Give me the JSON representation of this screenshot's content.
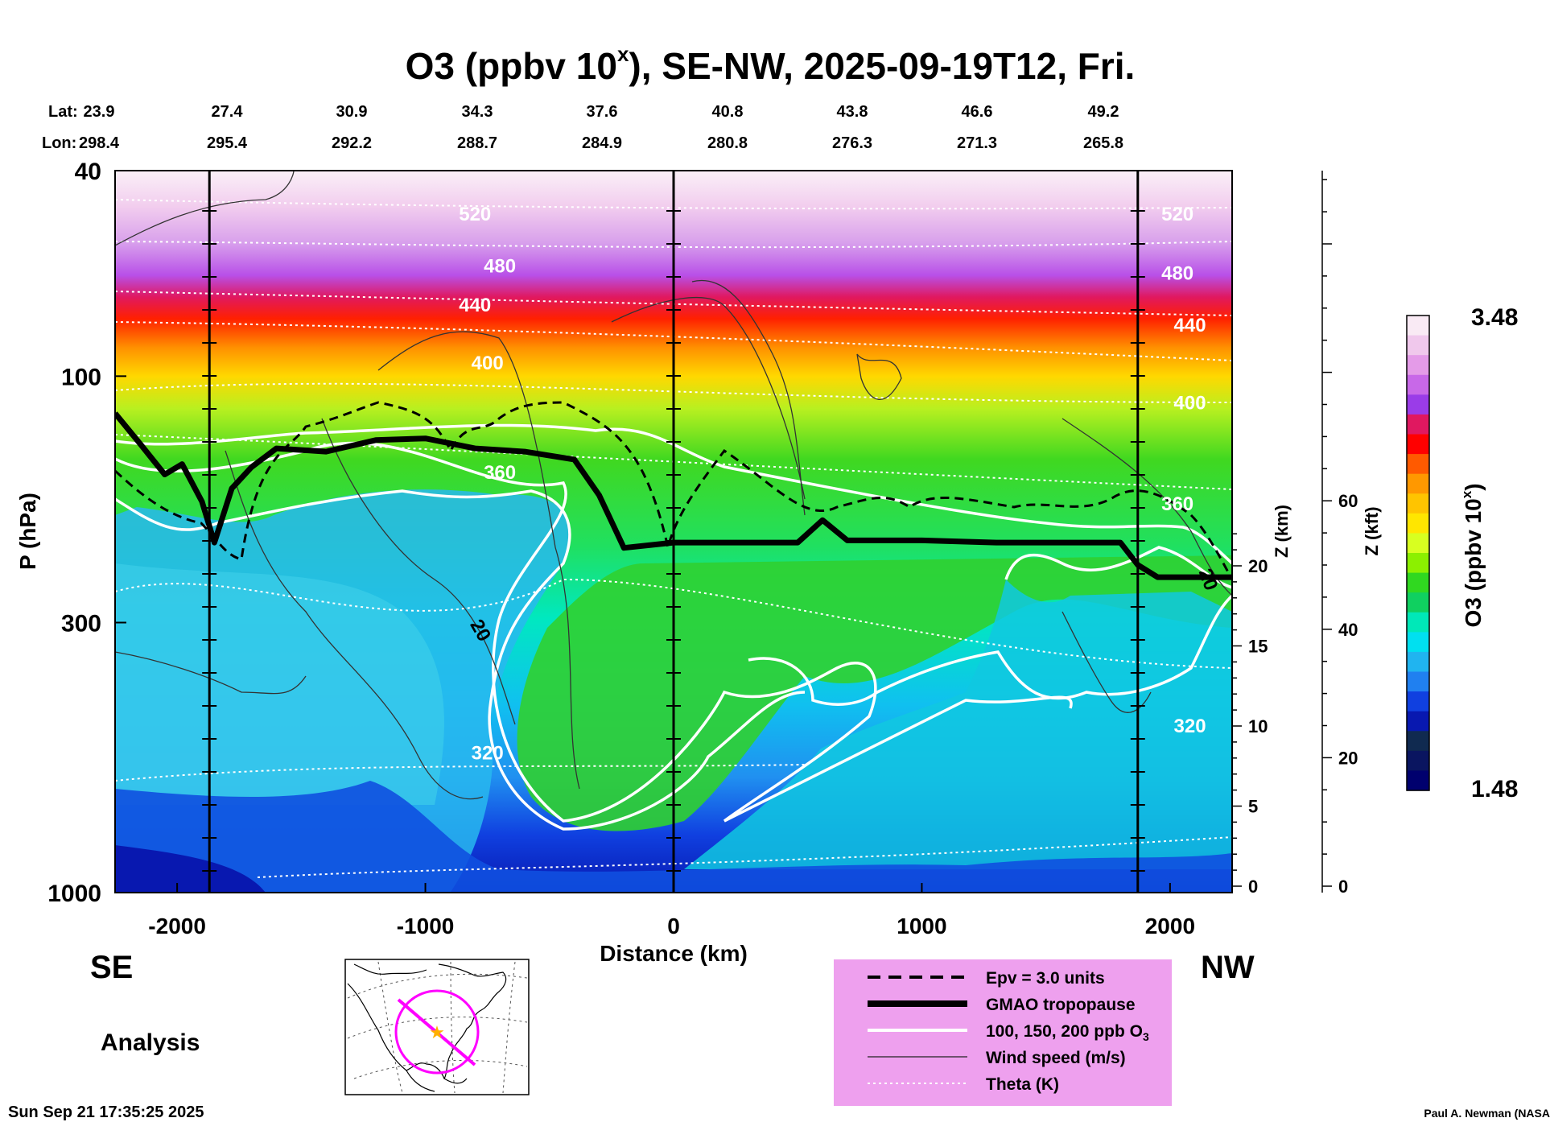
{
  "chart_data": {
    "type": "heatmap",
    "title": "O3 (ppbv 10",
    "title_superscript": "x",
    "title_rest": "), SE-NW, 2025-09-19T12, Fri.",
    "lat_label": "Lat:",
    "lon_label": "Lon:",
    "lat_values": [
      "23.9",
      "27.4",
      "30.9",
      "34.3",
      "37.6",
      "40.8",
      "43.8",
      "46.6",
      "49.2"
    ],
    "lon_values": [
      "298.4",
      "295.4",
      "292.2",
      "288.7",
      "284.9",
      "280.8",
      "276.3",
      "271.3",
      "265.8"
    ],
    "xlabel": "Distance (km)",
    "ylabel": "P (hPa)",
    "xlim": [
      -2250,
      2250
    ],
    "ylim": [
      1000,
      40
    ],
    "y_scale": "log",
    "x_ticks": [
      "-2000",
      "-1000",
      "0",
      "1000",
      "2000"
    ],
    "x_tick_values": [
      -2000,
      -1000,
      0,
      1000,
      2000
    ],
    "y_ticks": [
      "40",
      "100",
      "300",
      "1000"
    ],
    "y_tick_values": [
      40,
      100,
      300,
      1000
    ],
    "z_km_label": "Z (km)",
    "z_km_ticks": [
      "20",
      "15",
      "10",
      "5",
      "0"
    ],
    "z_km_values": [
      20,
      15,
      10,
      5,
      0
    ],
    "z_kft_label": "Z (kft)",
    "z_kft_ticks": [
      "60",
      "40",
      "20",
      "0"
    ],
    "z_kft_values": [
      60,
      40,
      20,
      0
    ],
    "section_markers_km": [
      -1870,
      0,
      1870
    ],
    "tropopause": {
      "x": [
        -2250,
        -2150,
        -2050,
        -1980,
        -1900,
        -1850,
        -1780,
        -1700,
        -1600,
        -1400,
        -1200,
        -1000,
        -800,
        -600,
        -400,
        -300,
        -200,
        0,
        300,
        500,
        600,
        700,
        1000,
        1300,
        1600,
        1800,
        1870,
        1950,
        2250
      ],
      "p": [
        118,
        135,
        155,
        148,
        175,
        210,
        165,
        150,
        138,
        140,
        133,
        132,
        138,
        140,
        145,
        170,
        215,
        210,
        210,
        210,
        190,
        208,
        208,
        210,
        210,
        210,
        232,
        245,
        245
      ]
    },
    "theta_labels": [
      {
        "text": "520",
        "x": -800,
        "p": 50
      },
      {
        "text": "480",
        "x": -700,
        "p": 63
      },
      {
        "text": "440",
        "x": -800,
        "p": 75
      },
      {
        "text": "400",
        "x": -750,
        "p": 97
      },
      {
        "text": "360",
        "x": -700,
        "p": 158
      },
      {
        "text": "320",
        "x": -750,
        "p": 552
      },
      {
        "text": "520",
        "x": 2030,
        "p": 50
      },
      {
        "text": "480",
        "x": 2030,
        "p": 65
      },
      {
        "text": "440",
        "x": 2080,
        "p": 82
      },
      {
        "text": "400",
        "x": 2080,
        "p": 116
      },
      {
        "text": "360",
        "x": 2030,
        "p": 182
      },
      {
        "text": "320",
        "x": 2080,
        "p": 490
      }
    ],
    "wind_labels": [
      {
        "text": "20",
        "x": -800,
        "p": 315,
        "rotate": 60
      },
      {
        "text": "20",
        "x": 2130,
        "p": 250,
        "rotate": 70
      }
    ],
    "colorbar": {
      "label": "O3 (ppbv 10",
      "label_superscript": "x",
      "label_end": ")",
      "max_label": "3.48",
      "min_label": "1.48",
      "colors": [
        "#f9eaf4",
        "#f0c8ec",
        "#e49be8",
        "#c868e8",
        "#9a3ce8",
        "#e01860",
        "#ff0000",
        "#ff5a00",
        "#ff9800",
        "#ffc400",
        "#ffe600",
        "#d8ff20",
        "#8cf000",
        "#30d820",
        "#10d060",
        "#00e8b8",
        "#00e0f0",
        "#20b4f0",
        "#2080f0",
        "#1040e0",
        "#0818b0",
        "#102a50",
        "#0a1560",
        "#00006e"
      ]
    },
    "direction_left": "SE",
    "direction_right": "NW",
    "analysis_label": "Analysis",
    "legend": [
      {
        "style": "dashed",
        "label": "Epv = 3.0 units"
      },
      {
        "style": "thick",
        "label": "GMAO tropopause"
      },
      {
        "style": "white",
        "label": "100, 150, 200 ppb O",
        "sub": "3"
      },
      {
        "style": "thin",
        "label": "Wind speed (m/s)"
      },
      {
        "style": "dotted",
        "label": "Theta (K)"
      }
    ],
    "legend_bg": "#eea0ee",
    "timestamp": "Sun Sep 21 17:35:25 2025",
    "credit": "Paul A. Newman (NASA"
  }
}
